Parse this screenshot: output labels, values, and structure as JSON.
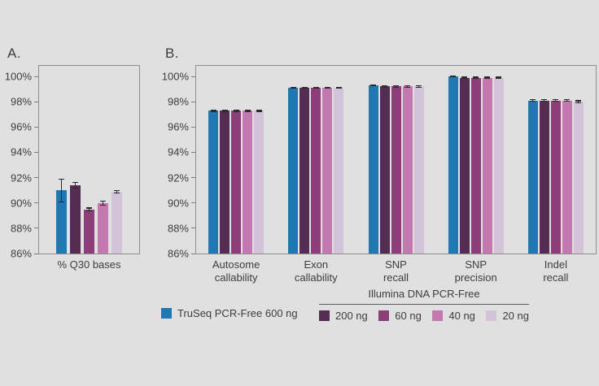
{
  "page": {
    "background": "#e0e0e0"
  },
  "panels": {
    "a_label": "A.",
    "b_label": "B."
  },
  "colors": {
    "truseq_blue": "#1e79b2",
    "ng200_dark_purple": "#542d52",
    "ng60_purple": "#8c3e78",
    "ng40_pink": "#c478b0",
    "ng20_lavender": "#d2c3d8",
    "axis_border": "#8f8f8f",
    "error_bar": "#2b2b2b",
    "text": "#3d3d3d"
  },
  "legend": {
    "truseq": {
      "label": "TruSeq PCR-Free 600 ng",
      "color": "#1e79b2"
    },
    "group_header": "Illumina DNA PCR-Free",
    "items": [
      {
        "label": "200 ng",
        "color": "#542d52"
      },
      {
        "label": "60 ng",
        "color": "#8c3e78"
      },
      {
        "label": "40 ng",
        "color": "#c478b0"
      },
      {
        "label": "20 ng",
        "color": "#d2c3d8"
      }
    ]
  },
  "chart_data": [
    {
      "type": "bar",
      "panel": "A",
      "title": "",
      "categories": [
        "% Q30 bases"
      ],
      "series": [
        {
          "name": "TruSeq PCR-Free 600 ng",
          "color": "#1e79b2",
          "values": [
            91.0
          ],
          "errors": [
            0.9
          ]
        },
        {
          "name": "200 ng",
          "color": "#542d52",
          "values": [
            91.4
          ],
          "errors": [
            0.2
          ]
        },
        {
          "name": "60 ng",
          "color": "#8c3e78",
          "values": [
            89.5
          ],
          "errors": [
            0.1
          ]
        },
        {
          "name": "40 ng",
          "color": "#c478b0",
          "values": [
            90.0
          ],
          "errors": [
            0.15
          ]
        },
        {
          "name": "20 ng",
          "color": "#d2c3d8",
          "values": [
            90.9
          ],
          "errors": [
            0.1
          ]
        }
      ],
      "ylim": [
        86,
        100
      ],
      "ytick_step": 2,
      "ytick_format": "percent",
      "grid": false,
      "legend_position": "bottom"
    },
    {
      "type": "bar",
      "panel": "B",
      "title": "",
      "categories": [
        "Autosome\ncallability",
        "Exon\ncallability",
        "SNP\nrecall",
        "SNP\nprecision",
        "Indel\nrecall"
      ],
      "series": [
        {
          "name": "TruSeq PCR-Free 600 ng",
          "color": "#1e79b2",
          "values": [
            97.3,
            99.1,
            99.3,
            100.0,
            98.1
          ],
          "errors": [
            0.06,
            0.05,
            0.05,
            0.03,
            0.06
          ]
        },
        {
          "name": "200 ng",
          "color": "#542d52",
          "values": [
            97.3,
            99.1,
            99.2,
            99.9,
            98.1
          ],
          "errors": [
            0.06,
            0.05,
            0.05,
            0.04,
            0.06
          ]
        },
        {
          "name": "60 ng",
          "color": "#8c3e78",
          "values": [
            97.3,
            99.1,
            99.2,
            99.9,
            98.1
          ],
          "errors": [
            0.06,
            0.05,
            0.05,
            0.04,
            0.06
          ]
        },
        {
          "name": "40 ng",
          "color": "#c478b0",
          "values": [
            97.3,
            99.1,
            99.2,
            99.9,
            98.1
          ],
          "errors": [
            0.06,
            0.05,
            0.05,
            0.04,
            0.06
          ]
        },
        {
          "name": "20 ng",
          "color": "#d2c3d8",
          "values": [
            97.3,
            99.1,
            99.2,
            99.9,
            98.0
          ],
          "errors": [
            0.06,
            0.05,
            0.05,
            0.04,
            0.08
          ]
        }
      ],
      "ylim": [
        86,
        100
      ],
      "ytick_step": 2,
      "ytick_format": "percent",
      "grid": false,
      "legend_position": "bottom"
    }
  ]
}
